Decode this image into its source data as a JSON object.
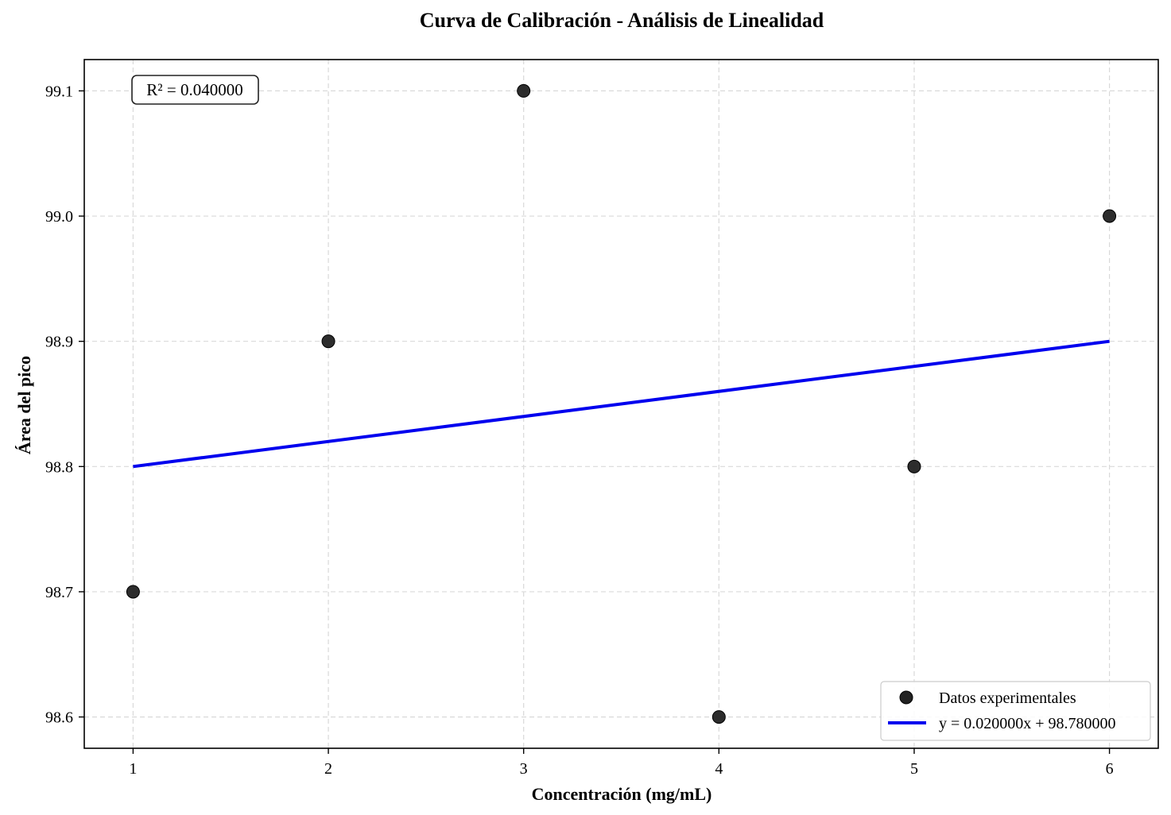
{
  "chart_data": {
    "type": "scatter",
    "title": "Curva de Calibración - Análisis de Linealidad",
    "xlabel": "Concentración (mg/mL)",
    "ylabel": "Área del pico",
    "xlim": [
      0.75,
      6.25
    ],
    "ylim": [
      98.575,
      99.125
    ],
    "x_ticks": [
      1,
      2,
      3,
      4,
      5,
      6
    ],
    "x_tick_labels": [
      "1",
      "2",
      "3",
      "4",
      "5",
      "6"
    ],
    "y_ticks": [
      98.6,
      98.7,
      98.8,
      98.9,
      99.0,
      99.1
    ],
    "y_tick_labels": [
      "98.6",
      "98.7",
      "98.8",
      "98.9",
      "99.0",
      "99.1"
    ],
    "grid": true,
    "legend_position": "bottom-right",
    "series": [
      {
        "name": "Datos experimentales",
        "kind": "scatter",
        "color": "#222222",
        "x": [
          1,
          2,
          3,
          4,
          5,
          6
        ],
        "y": [
          98.7,
          98.9,
          99.1,
          98.6,
          98.8,
          99.0
        ]
      },
      {
        "name": "y = 0.020000x + 98.780000",
        "kind": "line",
        "color": "#0000ee",
        "x": [
          1,
          6
        ],
        "y": [
          98.8,
          98.9
        ]
      }
    ],
    "annotation": "R² = 0.040000"
  }
}
